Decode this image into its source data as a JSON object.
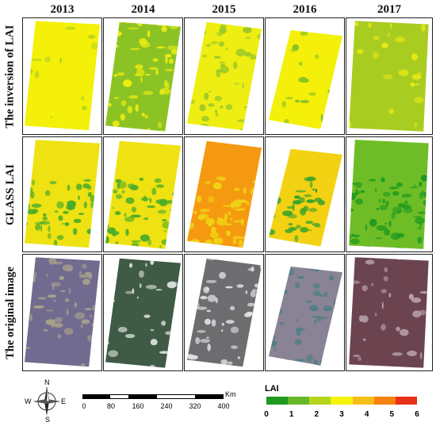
{
  "years": [
    "2013",
    "2014",
    "2015",
    "2016",
    "2017"
  ],
  "rows": [
    {
      "label": "The inversion of LAI"
    },
    {
      "label": "GLASS LAI"
    },
    {
      "label": "The original image"
    }
  ],
  "legend": {
    "title": "LAI",
    "ticks": [
      "0",
      "1",
      "2",
      "3",
      "4",
      "5",
      "6"
    ],
    "colors": [
      "#1f9a1f",
      "#66b82a",
      "#b4d41e",
      "#f6f20a",
      "#f7be17",
      "#f5820e",
      "#e8301a"
    ]
  },
  "scale_bar": {
    "ticks": [
      "0",
      "80",
      "160",
      "240",
      "320",
      "400"
    ],
    "unit": "Km"
  },
  "compass": {
    "n": "N",
    "s": "S",
    "e": "E",
    "w": "W"
  },
  "panels": {
    "lai_inversion": {
      "2013": {
        "base": "#f4f00a",
        "patch": "#b9d51c",
        "density": 0.05
      },
      "2014": {
        "base": "#8cc324",
        "patch": "#f0ee10",
        "density": 0.25
      },
      "2015": {
        "base": "#eeee12",
        "patch": "#9ec828",
        "density": 0.2
      },
      "2016": {
        "base": "#f4f00a",
        "patch": "#8cc224",
        "density": 0.12
      },
      "2017": {
        "base": "#a9cc20",
        "patch": "#e9ea14",
        "density": 0.08
      }
    },
    "glass_lai": {
      "2013": {
        "base": "#eee213",
        "patch": "#4aab28",
        "density": 0.22
      },
      "2014": {
        "base": "#eee213",
        "patch": "#4aab28",
        "density": 0.22
      },
      "2015": {
        "base": "#f59a10",
        "patch": "#f0d514",
        "density": 0.25
      },
      "2016": {
        "base": "#f2d213",
        "patch": "#3aa22a",
        "density": 0.2
      },
      "2017": {
        "base": "#6fbd26",
        "patch": "#1f9a1f",
        "density": 0.25
      }
    },
    "original": {
      "2013": {
        "base": "#726b90",
        "patch": "#a9a38b",
        "density": 0.22
      },
      "2014": {
        "base": "#3f5a45",
        "patch": "#d5dbd8",
        "density": 0.12
      },
      "2015": {
        "base": "#6d6d6f",
        "patch": "#e0e0e4",
        "density": 0.18
      },
      "2016": {
        "base": "#8a8295",
        "patch": "#4b7f86",
        "density": 0.3
      },
      "2017": {
        "base": "#6b4450",
        "patch": "#b8a0ad",
        "density": 0.12
      }
    }
  }
}
